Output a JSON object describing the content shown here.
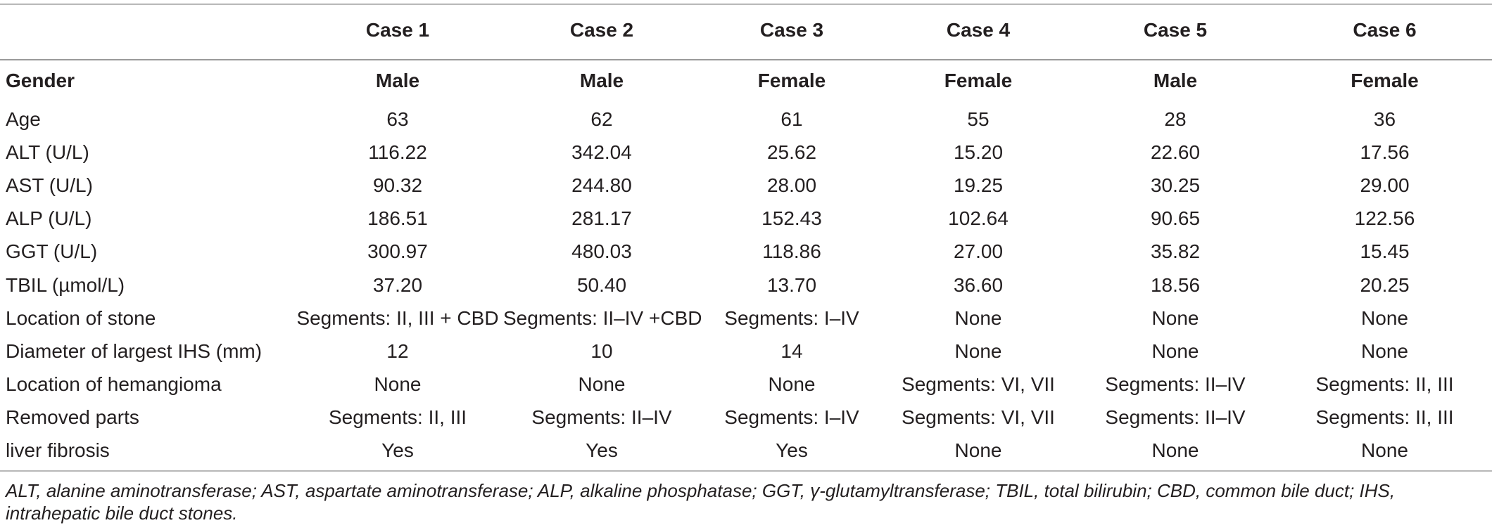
{
  "table": {
    "headers": [
      "",
      "Case 1",
      "Case 2",
      "Case 3",
      "Case 4",
      "Case 5",
      "Case 6"
    ],
    "rows": [
      {
        "label": "Gender",
        "values": [
          "Male",
          "Male",
          "Female",
          "Female",
          "Male",
          "Female"
        ]
      },
      {
        "label": "Age",
        "values": [
          "63",
          "62",
          "61",
          "55",
          "28",
          "36"
        ]
      },
      {
        "label": "ALT (U/L)",
        "values": [
          "116.22",
          "342.04",
          "25.62",
          "15.20",
          "22.60",
          "17.56"
        ]
      },
      {
        "label": "AST (U/L)",
        "values": [
          "90.32",
          "244.80",
          "28.00",
          "19.25",
          "30.25",
          "29.00"
        ]
      },
      {
        "label": "ALP (U/L)",
        "values": [
          "186.51",
          "281.17",
          "152.43",
          "102.64",
          "90.65",
          "122.56"
        ]
      },
      {
        "label": "GGT (U/L)",
        "values": [
          "300.97",
          "480.03",
          "118.86",
          "27.00",
          "35.82",
          "15.45"
        ]
      },
      {
        "label": "TBIL (µmol/L)",
        "values": [
          "37.20",
          "50.40",
          "13.70",
          "36.60",
          "18.56",
          "20.25"
        ]
      },
      {
        "label": "Location of stone",
        "values": [
          "Segments: II, III + CBD",
          "Segments: II–IV +CBD",
          "Segments: I–IV",
          "None",
          "None",
          "None"
        ]
      },
      {
        "label": "Diameter of largest IHS (mm)",
        "values": [
          "12",
          "10",
          "14",
          "None",
          "None",
          "None"
        ]
      },
      {
        "label": "Location of hemangioma",
        "values": [
          "None",
          "None",
          "None",
          "Segments: VI, VII",
          "Segments: II–IV",
          "Segments: II, III"
        ]
      },
      {
        "label": "Removed parts",
        "values": [
          "Segments: II, III",
          "Segments: II–IV",
          "Segments: I–IV",
          "Segments: VI, VII",
          "Segments: II–IV",
          "Segments: II, III"
        ]
      },
      {
        "label": "liver fibrosis",
        "values": [
          "Yes",
          "Yes",
          "Yes",
          "None",
          "None",
          "None"
        ]
      }
    ]
  },
  "footnote": "ALT, alanine aminotransferase; AST, aspartate aminotransferase; ALP, alkaline phosphatase; GGT, γ-glutamyltransferase; TBIL, total bilirubin; CBD, common bile duct; IHS, intrahepatic bile duct stones."
}
